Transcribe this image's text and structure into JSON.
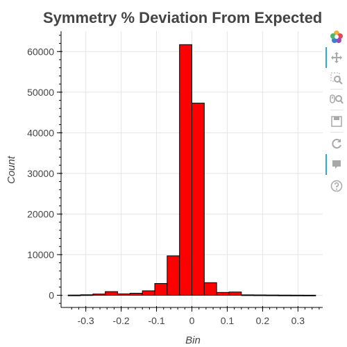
{
  "chart_data": {
    "type": "bar",
    "title": "Symmetry % Deviation From Expected",
    "xlabel": "Bin",
    "ylabel": "Count",
    "xlim": [
      -0.37,
      0.37
    ],
    "ylim": [
      -3000,
      65000
    ],
    "bin_width": 0.035,
    "x_ticks": [
      -0.3,
      -0.2,
      -0.1,
      0,
      0.1,
      0.2,
      0.3
    ],
    "x_tick_labels": [
      "-0.3",
      "-0.2",
      "-0.1",
      "0",
      "0.1",
      "0.2",
      "0.3"
    ],
    "y_ticks": [
      0,
      10000,
      20000,
      30000,
      40000,
      50000,
      60000
    ],
    "y_tick_labels": [
      "0",
      "10000",
      "20000",
      "30000",
      "40000",
      "50000",
      "60000"
    ],
    "bins": [
      -0.35,
      -0.315,
      -0.28,
      -0.245,
      -0.21,
      -0.175,
      -0.14,
      -0.105,
      -0.07,
      -0.035,
      0,
      0.035,
      0.07,
      0.105,
      0.14,
      0.175,
      0.21,
      0.245,
      0.28,
      0.315
    ],
    "values": [
      50,
      120,
      300,
      900,
      350,
      500,
      1100,
      2900,
      9700,
      61700,
      47300,
      3100,
      700,
      800,
      100,
      80,
      60,
      40,
      30,
      20
    ],
    "colors": {
      "bar": "#ff0000",
      "outline": "#000000",
      "grid": "#e5e5e5"
    },
    "grid": true
  },
  "toolbar": {
    "tools": [
      {
        "icon": "bokeh-logo-icon"
      },
      {
        "icon": "pan-icon"
      },
      {
        "icon": "box-zoom-icon"
      },
      {
        "icon": "wheel-zoom-icon"
      },
      {
        "icon": "save-icon"
      },
      {
        "icon": "reset-icon"
      },
      {
        "icon": "hover-icon"
      },
      {
        "icon": "help-icon"
      }
    ]
  }
}
